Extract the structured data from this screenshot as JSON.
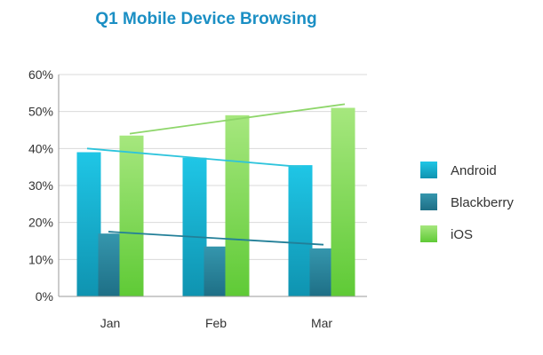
{
  "chart_data": {
    "type": "bar",
    "title": "Q1 Mobile Device Browsing",
    "xlabel": "",
    "ylabel": "",
    "categories": [
      "Jan",
      "Feb",
      "Mar"
    ],
    "ylim": [
      0,
      60
    ],
    "yticks": [
      "0%",
      "10%",
      "20%",
      "30%",
      "40%",
      "50%",
      "60%"
    ],
    "grid": true,
    "legend_position": "right",
    "series": [
      {
        "name": "Android",
        "values": [
          39,
          37.5,
          35.5
        ],
        "trend": [
          40,
          35
        ],
        "color": "#19b6d6"
      },
      {
        "name": "Blackberry",
        "values": [
          17,
          13.5,
          13
        ],
        "trend": [
          17.5,
          14
        ],
        "color": "#2a87a0"
      },
      {
        "name": "iOS",
        "values": [
          43.5,
          49,
          51
        ],
        "trend": [
          44,
          52
        ],
        "color": "#8fdc5b"
      }
    ]
  },
  "colors": {
    "title": "#1b8fc4",
    "axis_text": "#333333",
    "grid": "#d9d9d9",
    "axis": "#9a9a9a"
  }
}
